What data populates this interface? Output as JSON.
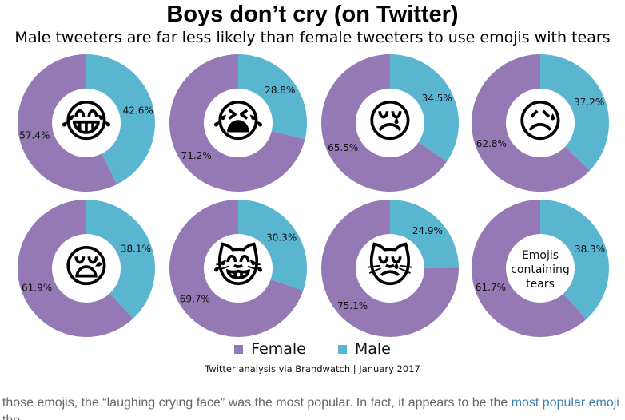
{
  "chart_data": {
    "type": "pie",
    "title": "Boys don’t cry (on Twitter)",
    "subtitle": "Male tweeters are far less likely than female tweeters to use emojis with tears",
    "legend": [
      "Female",
      "Male"
    ],
    "legend_position": "bottom",
    "source": "Twitter analysis via Brandwatch | January 2017",
    "colors": {
      "Female": "#9479b4",
      "Male": "#5ab5d0"
    },
    "charts": [
      {
        "emoji": "😂",
        "icon": "face-with-tears-of-joy-icon",
        "female": 57.4,
        "male": 42.6,
        "female_label": "57.4%",
        "male_label": "42.6%"
      },
      {
        "emoji": "😭",
        "icon": "loudly-crying-face-icon",
        "female": 71.2,
        "male": 28.8,
        "female_label": "71.2%",
        "male_label": "28.8%"
      },
      {
        "emoji": "😢",
        "icon": "crying-face-icon",
        "female": 65.5,
        "male": 34.5,
        "female_label": "65.5%",
        "male_label": "34.5%"
      },
      {
        "emoji": "😥",
        "icon": "sad-relieved-face-icon",
        "female": 62.8,
        "male": 37.2,
        "female_label": "62.8%",
        "male_label": "37.2%"
      },
      {
        "emoji": "😪",
        "icon": "sleepy-face-icon",
        "female": 61.9,
        "male": 38.1,
        "female_label": "61.9%",
        "male_label": "38.1%"
      },
      {
        "emoji": "😹",
        "icon": "cat-with-tears-of-joy-icon",
        "female": 69.7,
        "male": 30.3,
        "female_label": "69.7%",
        "male_label": "30.3%"
      },
      {
        "emoji": "😿",
        "icon": "crying-cat-face-icon",
        "female": 75.1,
        "male": 24.9,
        "female_label": "75.1%",
        "male_label": "24.9%"
      },
      {
        "emoji": "",
        "icon": "",
        "center_text": [
          "Emojis",
          "containing",
          "tears"
        ],
        "female": 61.7,
        "male": 38.3,
        "female_label": "61.7%",
        "male_label": "38.3%"
      }
    ]
  },
  "article": {
    "text_before_link": "f those emojis, the “laughing crying face” was the most popular. In fact, it appears to be the ",
    "link_text": "most popular emoji",
    "text_line2": "t the"
  }
}
